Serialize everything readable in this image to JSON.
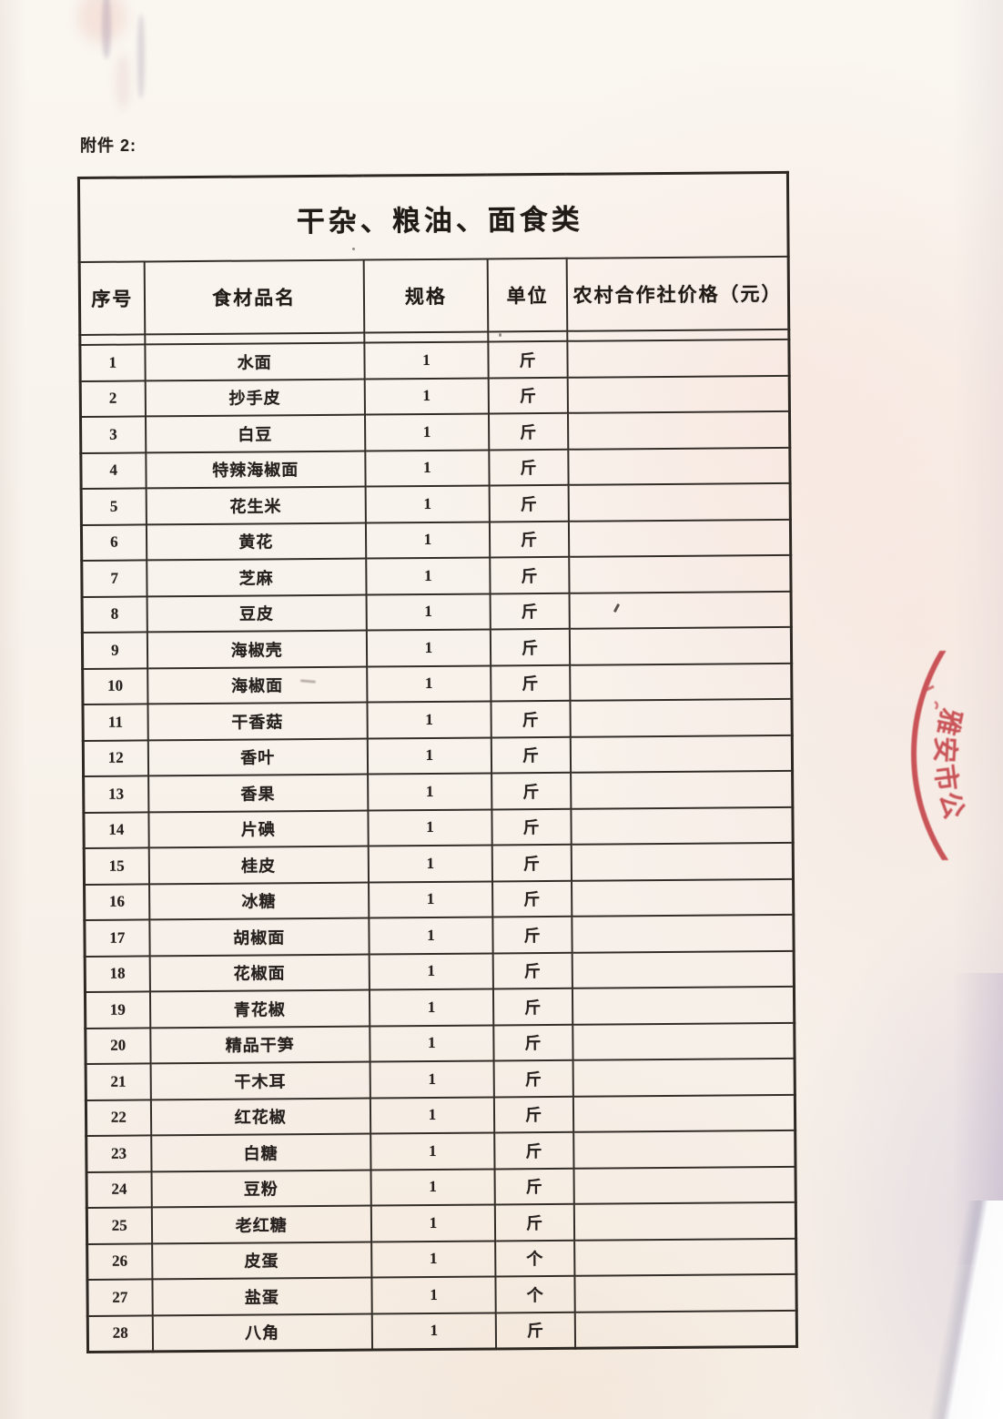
{
  "page": {
    "attachment_label": "附件 2:"
  },
  "table": {
    "title": "干杂、粮油、面食类",
    "columns": [
      "序号",
      "食材品名",
      "规格",
      "单位",
      "农村合作社价格（元）"
    ],
    "rows": [
      {
        "no": "1",
        "name": "水面",
        "spec": "1",
        "unit": "斤",
        "price": ""
      },
      {
        "no": "2",
        "name": "抄手皮",
        "spec": "1",
        "unit": "斤",
        "price": ""
      },
      {
        "no": "3",
        "name": "白豆",
        "spec": "1",
        "unit": "斤",
        "price": ""
      },
      {
        "no": "4",
        "name": "特辣海椒面",
        "spec": "1",
        "unit": "斤",
        "price": ""
      },
      {
        "no": "5",
        "name": "花生米",
        "spec": "1",
        "unit": "斤",
        "price": ""
      },
      {
        "no": "6",
        "name": "黄花",
        "spec": "1",
        "unit": "斤",
        "price": ""
      },
      {
        "no": "7",
        "name": "芝麻",
        "spec": "1",
        "unit": "斤",
        "price": ""
      },
      {
        "no": "8",
        "name": "豆皮",
        "spec": "1",
        "unit": "斤",
        "price": ""
      },
      {
        "no": "9",
        "name": "海椒壳",
        "spec": "1",
        "unit": "斤",
        "price": ""
      },
      {
        "no": "10",
        "name": "海椒面",
        "spec": "1",
        "unit": "斤",
        "price": ""
      },
      {
        "no": "11",
        "name": "干香菇",
        "spec": "1",
        "unit": "斤",
        "price": ""
      },
      {
        "no": "12",
        "name": "香叶",
        "spec": "1",
        "unit": "斤",
        "price": ""
      },
      {
        "no": "13",
        "name": "香果",
        "spec": "1",
        "unit": "斤",
        "price": ""
      },
      {
        "no": "14",
        "name": "片碘",
        "spec": "1",
        "unit": "斤",
        "price": ""
      },
      {
        "no": "15",
        "name": "桂皮",
        "spec": "1",
        "unit": "斤",
        "price": ""
      },
      {
        "no": "16",
        "name": "冰糖",
        "spec": "1",
        "unit": "斤",
        "price": ""
      },
      {
        "no": "17",
        "name": "胡椒面",
        "spec": "1",
        "unit": "斤",
        "price": ""
      },
      {
        "no": "18",
        "name": "花椒面",
        "spec": "1",
        "unit": "斤",
        "price": ""
      },
      {
        "no": "19",
        "name": "青花椒",
        "spec": "1",
        "unit": "斤",
        "price": ""
      },
      {
        "no": "20",
        "name": "精品干笋",
        "spec": "1",
        "unit": "斤",
        "price": ""
      },
      {
        "no": "21",
        "name": "干木耳",
        "spec": "1",
        "unit": "斤",
        "price": ""
      },
      {
        "no": "22",
        "name": "红花椒",
        "spec": "1",
        "unit": "斤",
        "price": ""
      },
      {
        "no": "23",
        "name": "白糖",
        "spec": "1",
        "unit": "斤",
        "price": ""
      },
      {
        "no": "24",
        "name": "豆粉",
        "spec": "1",
        "unit": "斤",
        "price": ""
      },
      {
        "no": "25",
        "name": "老红糖",
        "spec": "1",
        "unit": "斤",
        "price": ""
      },
      {
        "no": "26",
        "name": "皮蛋",
        "spec": "1",
        "unit": "个",
        "price": ""
      },
      {
        "no": "27",
        "name": "盐蛋",
        "spec": "1",
        "unit": "个",
        "price": ""
      },
      {
        "no": "28",
        "name": "八角",
        "spec": "1",
        "unit": "斤",
        "price": ""
      }
    ]
  },
  "stamp": {
    "text": "雅安市公",
    "color": "#c23b40"
  },
  "colors": {
    "stamp_red": "#c23b40",
    "ink": "#26211e",
    "paper": "#f8f2ec",
    "border": "#332d28"
  }
}
